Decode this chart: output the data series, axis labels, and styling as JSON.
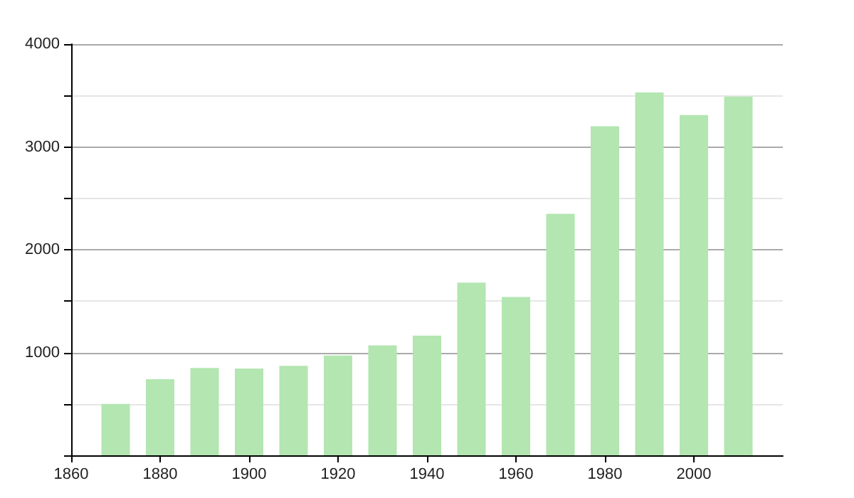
{
  "chart_data": {
    "type": "bar",
    "x": [
      1870,
      1880,
      1890,
      1900,
      1910,
      1920,
      1930,
      1940,
      1950,
      1960,
      1970,
      1980,
      1990,
      2000,
      2010
    ],
    "values": [
      500,
      740,
      850,
      845,
      870,
      970,
      1070,
      1165,
      1680,
      1540,
      2350,
      3200,
      3530,
      3310,
      3490
    ],
    "color": "#b3e6b1",
    "xlim": [
      1860,
      2020
    ],
    "xticks": [
      1860,
      1880,
      1900,
      1920,
      1940,
      1960,
      1980,
      2000
    ],
    "ylim": [
      0,
      4000
    ],
    "yticks": [
      {
        "value": 0,
        "label": null
      },
      {
        "value": 500,
        "label": null
      },
      1000,
      {
        "value": 1500,
        "label": null
      },
      2000,
      {
        "value": 2500,
        "label": null
      },
      3000,
      {
        "value": 3500,
        "label": null
      },
      4000
    ],
    "grid": "y"
  }
}
